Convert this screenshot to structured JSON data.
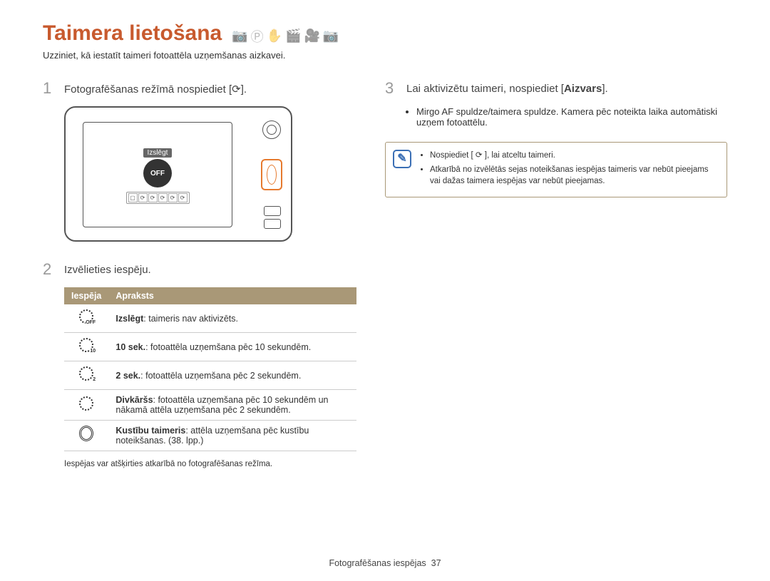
{
  "title": "Taimera lietošana",
  "subtitle": "Uzziniet, kā iestatīt taimeri fotoattēla uzņemšanas aizkavei.",
  "steps": {
    "s1": {
      "num": "1",
      "text_a": "Fotografēšanas režīmā nospiediet [",
      "text_b": "]."
    },
    "s2": {
      "num": "2",
      "text": "Izvēlieties iespēju."
    },
    "s3": {
      "num": "3",
      "text_a": "Lai aktivizētu taimeri, nospiediet [",
      "shutter": "Aizvars",
      "text_b": "]."
    }
  },
  "camera": {
    "overlay_top": "Izslēgt",
    "overlay_circle": "OFF"
  },
  "table": {
    "col1": "Iespēja",
    "col2": "Apraksts",
    "rows": [
      {
        "sub": "OFF",
        "label": "Izslēgt",
        "desc": ": taimeris nav aktivizēts."
      },
      {
        "sub": "10",
        "label": "10 sek.",
        "desc": ": fotoattēla uzņemšana pēc 10 sekundēm."
      },
      {
        "sub": "2",
        "label": "2 sek.",
        "desc": ": fotoattēla uzņemšana pēc 2 sekundēm."
      },
      {
        "sub": "",
        "label": "Divkāršs",
        "desc": ": fotoattēla uzņemšana pēc 10 sekundēm un nākamā attēla uzņemšana pēc 2 sekundēm."
      },
      {
        "sub": "",
        "label": "Kustību taimeris",
        "desc": ": attēla uzņemšana pēc kustību noteikšanas. (38. lpp.)"
      }
    ],
    "note": "Iespējas var atšķirties atkarībā no fotografēšanas režīma."
  },
  "right": {
    "bullet": "Mirgo AF spuldze/taimera spuldze. Kamera pēc noteikta laika automātiski uzņem fotoattēlu.",
    "info": [
      "Nospiediet [ ⟳ ], lai atceltu taimeri.",
      "Atkarībā no izvēlētās sejas noteikšanas iespējas taimeris var nebūt pieejams vai dažas taimera iespējas var nebūt pieejamas."
    ]
  },
  "footer": {
    "section": "Fotografēšanas iespējas",
    "page": "37"
  }
}
